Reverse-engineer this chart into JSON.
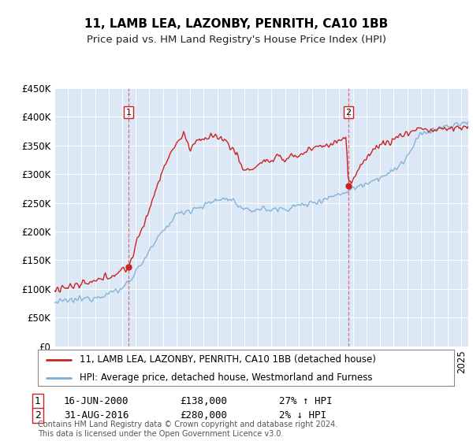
{
  "title": "11, LAMB LEA, LAZONBY, PENRITH, CA10 1BB",
  "subtitle": "Price paid vs. HM Land Registry's House Price Index (HPI)",
  "ylim": [
    0,
    450000
  ],
  "yticks": [
    0,
    50000,
    100000,
    150000,
    200000,
    250000,
    300000,
    350000,
    400000,
    450000
  ],
  "ytick_labels": [
    "£0",
    "£50K",
    "£100K",
    "£150K",
    "£200K",
    "£250K",
    "£300K",
    "£350K",
    "£400K",
    "£450K"
  ],
  "xlim_start": 1995.0,
  "xlim_end": 2025.5,
  "plot_bg_color": "#dce8f5",
  "red_line_color": "#cc2222",
  "blue_line_color": "#7aadd4",
  "sale1_x": 2000.46,
  "sale1_y": 138000,
  "sale2_x": 2016.67,
  "sale2_y": 280000,
  "legend_label_red": "11, LAMB LEA, LAZONBY, PENRITH, CA10 1BB (detached house)",
  "legend_label_blue": "HPI: Average price, detached house, Westmorland and Furness",
  "note1_date": "16-JUN-2000",
  "note1_price": "£138,000",
  "note1_hpi": "27% ↑ HPI",
  "note2_date": "31-AUG-2016",
  "note2_price": "£280,000",
  "note2_hpi": "2% ↓ HPI",
  "footer": "Contains HM Land Registry data © Crown copyright and database right 2024.\nThis data is licensed under the Open Government Licence v3.0.",
  "title_fontsize": 11,
  "subtitle_fontsize": 9.5,
  "tick_fontsize": 8.5,
  "legend_fontsize": 8.5,
  "info_fontsize": 9,
  "footer_fontsize": 7
}
